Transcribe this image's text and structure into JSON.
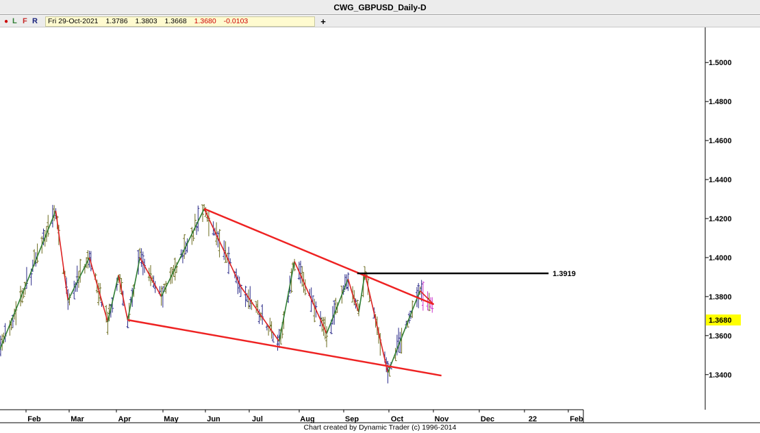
{
  "window": {
    "title": "CWG_GBPUSD_Daily-D"
  },
  "toolbar": {
    "dot": "●",
    "l_label": "L",
    "f_label": "F",
    "r_label": "R",
    "date": "Fri 29-Oct-2021",
    "open": "1.3786",
    "high": "1.3803",
    "low": "1.3668",
    "close": "1.3680",
    "change": "-0.0103",
    "add_label": "+"
  },
  "footer": {
    "credit": "Chart created by Dynamic Trader  (c) 1996-2014"
  },
  "colors": {
    "up_swing": "#2e7d32",
    "down_swing": "#dd2222",
    "bar_dark": "#2a2a88",
    "bar_olive": "#6b6b1e",
    "bar_pink": "#cc33cc",
    "price_highlight": "#ffff00",
    "trendline": "#ee2222",
    "level_line": "#000000"
  },
  "chart_data": {
    "type": "ohlc",
    "symbol": "CWG_GBPUSD_Daily-D",
    "x_labels": [
      "Feb",
      "Mar",
      "Apr",
      "May",
      "Jun",
      "Jul",
      "Aug",
      "Sep",
      "Oct",
      "Nov",
      "Dec",
      "22",
      "Feb"
    ],
    "y_ticks": [
      "1.3400",
      "1.3600",
      "1.3800",
      "1.4000",
      "1.4200",
      "1.4400",
      "1.4600",
      "1.4800",
      "1.5000"
    ],
    "ylim": [
      1.322,
      1.518
    ],
    "current_price": "1.3680",
    "level_value": 1.3919,
    "level_label": "1.3919",
    "grid": false,
    "swing_pivots": [
      {
        "date": "2021-01-18",
        "price": 1.352
      },
      {
        "date": "2021-02-24",
        "price": 1.424
      },
      {
        "date": "2021-03-04",
        "price": 1.378
      },
      {
        "date": "2021-03-18",
        "price": 1.4
      },
      {
        "date": "2021-03-30",
        "price": 1.367
      },
      {
        "date": "2021-04-06",
        "price": 1.391
      },
      {
        "date": "2021-04-12",
        "price": 1.368
      },
      {
        "date": "2021-04-20",
        "price": 1.4
      },
      {
        "date": "2021-05-04",
        "price": 1.38
      },
      {
        "date": "2021-06-01",
        "price": 1.425
      },
      {
        "date": "2021-06-25",
        "price": 1.385
      },
      {
        "date": "2021-07-20",
        "price": 1.357
      },
      {
        "date": "2021-07-30",
        "price": 1.398
      },
      {
        "date": "2021-08-20",
        "price": 1.361
      },
      {
        "date": "2021-09-03",
        "price": 1.389
      },
      {
        "date": "2021-09-06",
        "price": 1.381
      },
      {
        "date": "2021-09-10",
        "price": 1.372
      },
      {
        "date": "2021-09-14",
        "price": 1.392
      },
      {
        "date": "2021-09-29",
        "price": 1.341
      },
      {
        "date": "2021-10-20",
        "price": 1.383
      },
      {
        "date": "2021-10-29",
        "price": 1.376
      }
    ],
    "channel_lines": [
      {
        "name": "upper",
        "start": {
          "date": "2021-06-01",
          "price": 1.425
        },
        "end": {
          "date": "2021-10-29",
          "price": 1.376
        }
      },
      {
        "name": "lower",
        "start": {
          "date": "2021-04-12",
          "price": 1.368
        },
        "end": {
          "date": "2021-11-03",
          "price": 1.3395
        }
      }
    ],
    "level_line": {
      "start": "2021-09-09",
      "end": "2022-01-12",
      "price": 1.3919
    }
  }
}
